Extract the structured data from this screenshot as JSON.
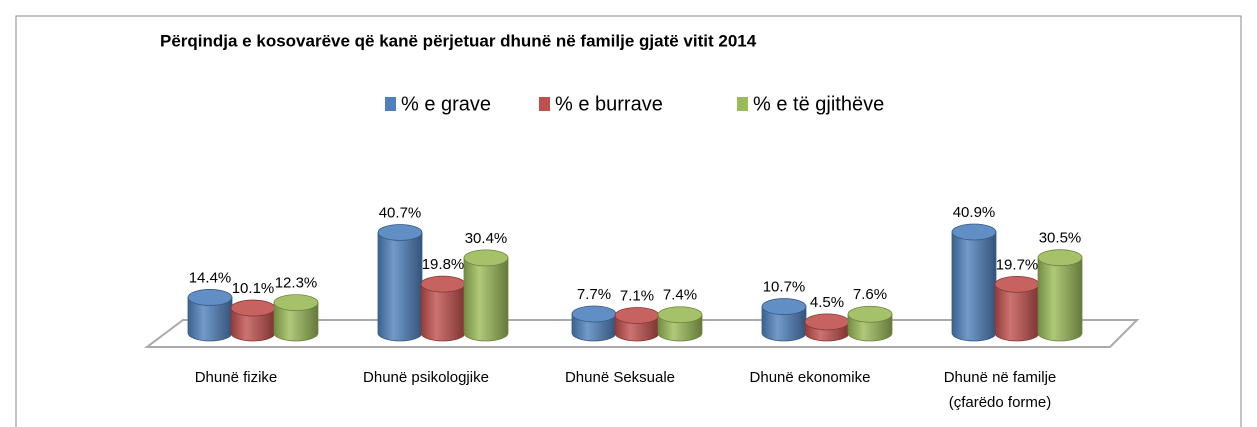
{
  "chart_data": {
    "type": "bar3d-cylinder",
    "title": "Përqindja e kosovarëve që kanë përjetuar dhunë në familje gjatë vitit 2014",
    "categories": [
      "Dhunë fizike",
      "Dhunë psikologjike",
      "Dhunë Seksuale",
      "Dhunë ekonomike",
      "Dhunë në familje\n(çfarëdo forme)"
    ],
    "series": [
      {
        "name": "% e grave",
        "color": "#4f81bd",
        "values": [
          14.4,
          40.7,
          7.7,
          10.7,
          40.9
        ],
        "value_labels": [
          "14.4%",
          "40.7%",
          "7.7%",
          "10.7%",
          "40.9%"
        ]
      },
      {
        "name": "% e burrave",
        "color": "#c0504d",
        "values": [
          10.1,
          19.8,
          7.1,
          4.5,
          19.7
        ],
        "value_labels": [
          "10.1%",
          "19.8%",
          "7.1%",
          "4.5%",
          "19.7%"
        ]
      },
      {
        "name": "% e të gjithëve",
        "color": "#9bbb59",
        "values": [
          12.3,
          30.4,
          7.4,
          7.6,
          30.5
        ],
        "value_labels": [
          "12.3%",
          "30.4%",
          "7.4%",
          "7.6%",
          "30.5%"
        ]
      }
    ],
    "legend": "top"
  }
}
